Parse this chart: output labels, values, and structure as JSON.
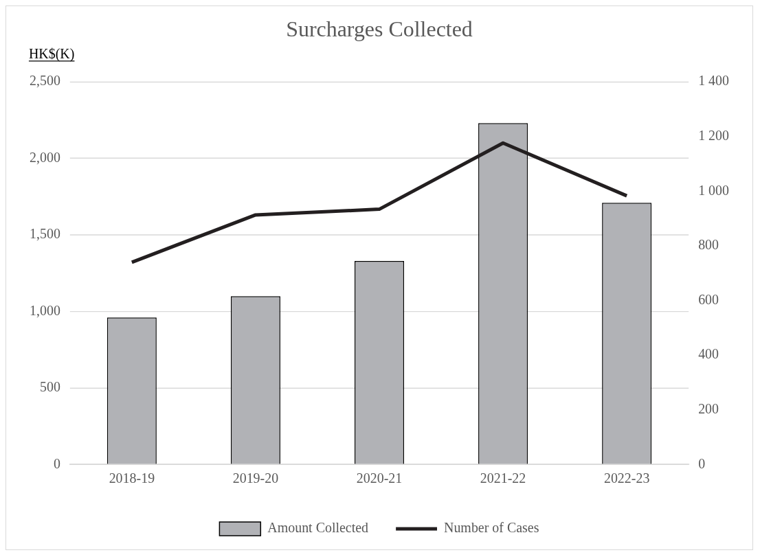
{
  "chart_data": {
    "type": "bar",
    "title": "Surcharges Collected",
    "ylabel": "HK$(K)",
    "categories": [
      "2018-19",
      "2019-20",
      "2020-21",
      "2021-22",
      "2022-23"
    ],
    "series": [
      {
        "name": "Amount Collected",
        "color": "#b1b2b6",
        "values": [
          960,
          1100,
          1330,
          2230,
          1710
        ]
      },
      {
        "name": "Number of Cases",
        "type": "line",
        "axis": "y2",
        "color": "#231f20",
        "values": [
          740,
          913,
          934,
          1176,
          983
        ]
      }
    ],
    "ylim": [
      0,
      2500
    ],
    "yticks": [
      0,
      {
        "value": 500,
        "label": "500"
      },
      {
        "value": 1000,
        "label": "1,000"
      },
      {
        "value": 1500,
        "label": "1,500"
      },
      {
        "value": 2000,
        "label": "2,000"
      },
      {
        "value": 2500,
        "label": "2,500"
      }
    ],
    "y2lim": [
      0,
      1400
    ],
    "y2ticks": [
      0,
      200,
      400,
      600,
      800,
      {
        "value": 1000,
        "label": "1 000"
      },
      {
        "value": 1200,
        "label": "1 200"
      },
      {
        "value": 1400,
        "label": "1 400"
      }
    ],
    "grid": "y",
    "legend": "bottom"
  }
}
